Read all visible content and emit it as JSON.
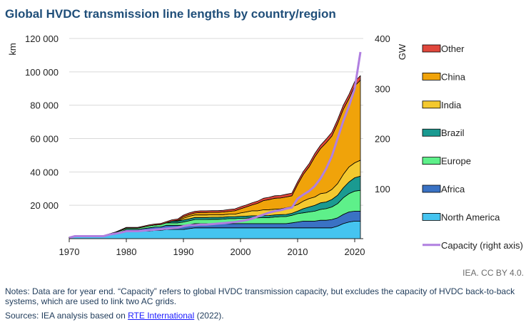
{
  "title": "Global HVDC transmission line lengths by country/region",
  "credit": "IEA. CC BY 4.0.",
  "notes": "Notes: Data are for year end. “Capacity” refers to global HVDC transmission capacity, but excludes the capacity of HVDC back-to-back systems, which are used to link two AC grids.",
  "sources": {
    "prefix": "Sources: IEA analysis based on ",
    "link_text": "RTE International",
    "suffix": " (2022)."
  },
  "chart_data": {
    "type": "area",
    "stacked": true,
    "x": [
      1970,
      1971,
      1972,
      1973,
      1974,
      1975,
      1976,
      1977,
      1978,
      1979,
      1980,
      1981,
      1982,
      1983,
      1984,
      1985,
      1986,
      1987,
      1988,
      1989,
      1990,
      1991,
      1992,
      1993,
      1994,
      1995,
      1996,
      1997,
      1998,
      1999,
      2000,
      2001,
      2002,
      2003,
      2004,
      2005,
      2006,
      2007,
      2008,
      2009,
      2010,
      2011,
      2012,
      2013,
      2014,
      2015,
      2016,
      2017,
      2018,
      2019,
      2020,
      2021
    ],
    "xticks": [
      "1970",
      "1980",
      "1990",
      "2000",
      "2010",
      "2020"
    ],
    "ylabel": "km",
    "ylim": [
      0,
      120000
    ],
    "yticks": [
      "",
      "20 000",
      "40 000",
      "60 000",
      "80 000",
      "100 000",
      "120 000"
    ],
    "y2label": "GW",
    "y2lim": [
      0,
      400
    ],
    "y2ticks": [
      "",
      "100",
      "200",
      "300",
      "400"
    ],
    "grid": true,
    "legend_position": "right",
    "series": [
      {
        "name": "North America",
        "color": "#45c4f0",
        "values": [
          500,
          1500,
          1500,
          1500,
          1500,
          1500,
          1500,
          2500,
          3500,
          4000,
          4500,
          4500,
          4500,
          4500,
          4500,
          5000,
          5000,
          5500,
          5500,
          5500,
          5500,
          6000,
          6500,
          6500,
          6500,
          6500,
          6500,
          6500,
          6500,
          6500,
          6500,
          6500,
          6500,
          6500,
          6500,
          6500,
          6500,
          6500,
          6500,
          6500,
          6500,
          6500,
          6500,
          6500,
          6500,
          6500,
          6500,
          7500,
          9000,
          10000,
          10500,
          10500
        ]
      },
      {
        "name": "Africa",
        "color": "#3a72c4",
        "values": [
          0,
          0,
          0,
          0,
          0,
          0,
          0,
          0,
          0,
          0,
          1000,
          1000,
          1000,
          1500,
          2000,
          2000,
          2000,
          2500,
          2500,
          2500,
          2500,
          2500,
          2500,
          2500,
          2500,
          2500,
          2500,
          2500,
          2500,
          2500,
          2500,
          2500,
          2500,
          2500,
          2500,
          2500,
          2500,
          2500,
          2500,
          3000,
          3500,
          4000,
          4000,
          4000,
          4500,
          4500,
          5000,
          5000,
          5500,
          6000,
          6000,
          6000
        ]
      },
      {
        "name": "Europe",
        "color": "#5ef08a",
        "values": [
          300,
          300,
          300,
          300,
          300,
          300,
          300,
          300,
          300,
          800,
          800,
          800,
          800,
          1000,
          1200,
          1200,
          1400,
          1500,
          1500,
          1500,
          2000,
          2200,
          2500,
          2500,
          2500,
          2600,
          2600,
          2700,
          3000,
          3000,
          3200,
          3300,
          3500,
          3500,
          3600,
          3700,
          4000,
          4200,
          4300,
          4500,
          5000,
          5000,
          5500,
          6000,
          6500,
          7000,
          7500,
          8500,
          10000,
          11000,
          12000,
          12500
        ]
      },
      {
        "name": "Brazil",
        "color": "#1a9a91",
        "values": [
          0,
          0,
          0,
          0,
          0,
          0,
          0,
          0,
          0,
          0,
          0,
          0,
          0,
          0,
          0,
          0,
          0,
          0,
          1000,
          1000,
          1200,
          1200,
          1200,
          1200,
          1200,
          1200,
          1200,
          1200,
          1200,
          1200,
          1200,
          1200,
          1200,
          1200,
          1200,
          1200,
          1200,
          1200,
          1200,
          1200,
          1500,
          2500,
          3000,
          3500,
          4000,
          4000,
          4500,
          5000,
          6000,
          7000,
          8000,
          8500
        ]
      },
      {
        "name": "India",
        "color": "#f4c92f",
        "values": [
          0,
          0,
          0,
          0,
          0,
          0,
          0,
          0,
          0,
          0,
          0,
          0,
          0,
          0,
          0,
          0,
          0,
          0,
          0,
          0,
          1000,
          1500,
          1500,
          1500,
          1500,
          1500,
          1500,
          1500,
          1500,
          1500,
          2000,
          2500,
          3000,
          3000,
          3500,
          3500,
          3500,
          3500,
          4000,
          4000,
          4000,
          4500,
          5000,
          5000,
          5500,
          5500,
          6000,
          7000,
          8000,
          9000,
          9000,
          9500
        ]
      },
      {
        "name": "China",
        "color": "#f0a30a",
        "values": [
          0,
          0,
          0,
          0,
          0,
          0,
          0,
          0,
          0,
          0,
          0,
          0,
          0,
          0,
          0,
          0,
          0,
          0,
          0,
          500,
          1000,
          1000,
          1200,
          1500,
          1500,
          1500,
          1500,
          1600,
          1700,
          2000,
          2500,
          3000,
          3500,
          4500,
          5500,
          6000,
          6500,
          6500,
          6500,
          6500,
          12000,
          16000,
          19000,
          24000,
          27000,
          30000,
          32000,
          36000,
          39000,
          41000,
          46000,
          48000
        ]
      },
      {
        "name": "Other",
        "color": "#e0473c",
        "values": [
          0,
          0,
          0,
          0,
          0,
          0,
          0,
          0,
          0,
          500,
          500,
          500,
          500,
          500,
          600,
          600,
          700,
          700,
          800,
          800,
          900,
          1000,
          1000,
          1000,
          1000,
          1000,
          1000,
          1000,
          1100,
          1100,
          1200,
          1200,
          1300,
          1300,
          1400,
          1400,
          1500,
          1500,
          1600,
          1600,
          1700,
          1800,
          1900,
          2000,
          2000,
          2200,
          2300,
          2400,
          2500,
          2500,
          2700,
          2700
        ]
      }
    ],
    "line_series": {
      "name": "Capacity (right axis)",
      "color": "#b07fe0",
      "axis": "right",
      "values": [
        2,
        5,
        5,
        5,
        5,
        5,
        5,
        8,
        10,
        12,
        15,
        15,
        15,
        16,
        17,
        18,
        19,
        20,
        21,
        22,
        25,
        27,
        27,
        28,
        28,
        29,
        30,
        31,
        32,
        33,
        35,
        37,
        40,
        44,
        48,
        52,
        55,
        57,
        60,
        62,
        80,
        88,
        95,
        105,
        120,
        140,
        165,
        200,
        235,
        265,
        300,
        373
      ]
    },
    "legend": [
      {
        "label": "Other",
        "color": "#e0473c",
        "kind": "area"
      },
      {
        "label": "China",
        "color": "#f0a30a",
        "kind": "area"
      },
      {
        "label": "India",
        "color": "#f4c92f",
        "kind": "area"
      },
      {
        "label": "Brazil",
        "color": "#1a9a91",
        "kind": "area"
      },
      {
        "label": "Europe",
        "color": "#5ef08a",
        "kind": "area"
      },
      {
        "label": "Africa",
        "color": "#3a72c4",
        "kind": "area"
      },
      {
        "label": "North America",
        "color": "#45c4f0",
        "kind": "area"
      },
      {
        "label": "Capacity (right axis)",
        "color": "#b07fe0",
        "kind": "line"
      }
    ]
  }
}
